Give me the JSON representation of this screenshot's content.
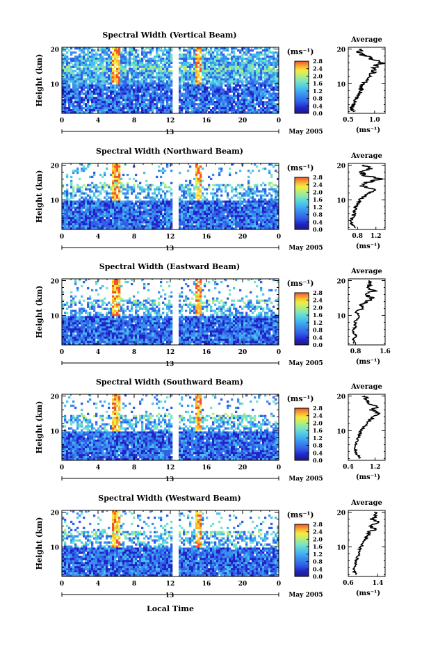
{
  "figure": {
    "xlabel": "Local Time",
    "date_label": "May 2005",
    "day_label": "13",
    "y_label": "Height (km)",
    "unit_label": "(ms⁻¹)",
    "colorbar_ticks": [
      "2.8",
      "2.4",
      "2.0",
      "1.6",
      "1.2",
      "0.8",
      "0.4",
      "0.0"
    ],
    "profile_title": "Average",
    "profile_unit": "(ms⁻¹)"
  },
  "colors": {
    "scale": [
      "#1d1d7a",
      "#2222c8",
      "#2f5fe6",
      "#3a8ef0",
      "#48c0ee",
      "#74e2c8",
      "#b8ee78",
      "#f2ec42",
      "#f9b432",
      "#f2542a"
    ],
    "background": "#ffffff"
  },
  "chart_data": [
    {
      "type": "heatmap",
      "title": "Spectral Width (Vertical Beam)",
      "x_ticks": [
        "0",
        "4",
        "8",
        "12",
        "16",
        "20",
        "0"
      ],
      "y_ticks": [
        "20",
        "10"
      ],
      "xlim": [
        0,
        24
      ],
      "ylim": [
        1.5,
        20.5
      ],
      "colorbar_range": [
        0.0,
        2.8
      ],
      "profile": {
        "xlim": [
          0.5,
          1.2
        ],
        "x_ticks": [
          "0.5",
          "1.0"
        ],
        "y_ticks": [
          "20",
          "10"
        ],
        "heights": [
          2,
          3,
          4,
          5,
          6,
          7,
          8,
          9,
          10,
          11,
          12,
          13,
          14,
          15,
          16,
          17,
          18,
          19,
          20
        ],
        "values": [
          0.6,
          0.55,
          0.6,
          0.62,
          0.66,
          0.7,
          0.75,
          0.72,
          0.78,
          0.85,
          0.9,
          0.95,
          0.98,
          1.0,
          1.15,
          1.0,
          0.8,
          0.7,
          0.75
        ]
      }
    },
    {
      "type": "heatmap",
      "title": "Spectral Width (Northward Beam)",
      "x_ticks": [
        "0",
        "4",
        "8",
        "12",
        "16",
        "20",
        "0"
      ],
      "y_ticks": [
        "20",
        "10"
      ],
      "xlim": [
        0,
        24
      ],
      "ylim": [
        1.5,
        20.5
      ],
      "colorbar_range": [
        0.0,
        2.8
      ],
      "profile": {
        "xlim": [
          0.6,
          1.4
        ],
        "x_ticks": [
          "0.8",
          "1.2"
        ],
        "y_ticks": [
          "20",
          "10"
        ],
        "heights": [
          2,
          3,
          4,
          5,
          6,
          7,
          8,
          9,
          10,
          11,
          12,
          13,
          14,
          15,
          16,
          17,
          18,
          19,
          20
        ],
        "values": [
          0.75,
          0.68,
          0.66,
          0.7,
          0.72,
          0.74,
          0.76,
          0.8,
          0.85,
          0.95,
          1.05,
          1.2,
          0.9,
          1.0,
          1.3,
          0.95,
          0.9,
          1.05,
          0.95
        ]
      }
    },
    {
      "type": "heatmap",
      "title": "Spectral Width (Eastward Beam)",
      "x_ticks": [
        "0",
        "4",
        "8",
        "12",
        "16",
        "20",
        "0"
      ],
      "y_ticks": [
        "20",
        "10"
      ],
      "xlim": [
        0,
        24
      ],
      "ylim": [
        1.5,
        20.5
      ],
      "colorbar_range": [
        0.0,
        2.8
      ],
      "profile": {
        "xlim": [
          0.6,
          1.6
        ],
        "x_ticks": [
          "0.8",
          "1.6"
        ],
        "y_ticks": [
          "20",
          "10"
        ],
        "heights": [
          2,
          3,
          4,
          5,
          6,
          7,
          8,
          9,
          10,
          11,
          12,
          13,
          14,
          15,
          16,
          17,
          18,
          19,
          20
        ],
        "values": [
          0.75,
          0.72,
          0.8,
          0.76,
          0.74,
          0.8,
          0.78,
          0.85,
          0.9,
          0.8,
          1.0,
          0.95,
          1.1,
          1.25,
          1.05,
          1.3,
          1.1,
          1.2,
          1.15
        ]
      }
    },
    {
      "type": "heatmap",
      "title": "Spectral Width (Southward Beam)",
      "x_ticks": [
        "0",
        "4",
        "8",
        "12",
        "16",
        "20",
        "0"
      ],
      "y_ticks": [
        "20",
        "10"
      ],
      "xlim": [
        0,
        24
      ],
      "ylim": [
        1.5,
        20.5
      ],
      "colorbar_range": [
        0.0,
        2.8
      ],
      "profile": {
        "xlim": [
          0.4,
          1.5
        ],
        "x_ticks": [
          "0.4",
          "1.2"
        ],
        "y_ticks": [
          "20",
          "10"
        ],
        "heights": [
          2,
          3,
          4,
          5,
          6,
          7,
          8,
          9,
          10,
          11,
          12,
          13,
          14,
          15,
          16,
          17,
          18,
          19,
          20
        ],
        "values": [
          0.75,
          0.68,
          0.62,
          0.6,
          0.62,
          0.66,
          0.7,
          0.74,
          0.78,
          0.85,
          0.95,
          1.05,
          1.15,
          1.35,
          1.1,
          1.3,
          1.0,
          0.95,
          0.9
        ]
      }
    },
    {
      "type": "heatmap",
      "title": "Spectral Width (Westward Beam)",
      "x_ticks": [
        "0",
        "4",
        "8",
        "12",
        "16",
        "20",
        "0"
      ],
      "y_ticks": [
        "20",
        "10"
      ],
      "xlim": [
        0,
        24
      ],
      "ylim": [
        1.5,
        20.5
      ],
      "colorbar_range": [
        0.0,
        2.8
      ],
      "profile": {
        "xlim": [
          0.6,
          1.6
        ],
        "x_ticks": [
          "0.6",
          "1.4"
        ],
        "y_ticks": [
          "20",
          "10"
        ],
        "heights": [
          2,
          3,
          4,
          5,
          6,
          7,
          8,
          9,
          10,
          11,
          12,
          13,
          14,
          15,
          16,
          17,
          18,
          19,
          20
        ],
        "values": [
          0.8,
          0.75,
          0.78,
          0.82,
          0.8,
          0.85,
          0.9,
          0.88,
          0.95,
          1.0,
          1.05,
          1.1,
          1.15,
          1.3,
          1.2,
          1.4,
          1.25,
          1.35,
          1.3
        ]
      }
    }
  ]
}
